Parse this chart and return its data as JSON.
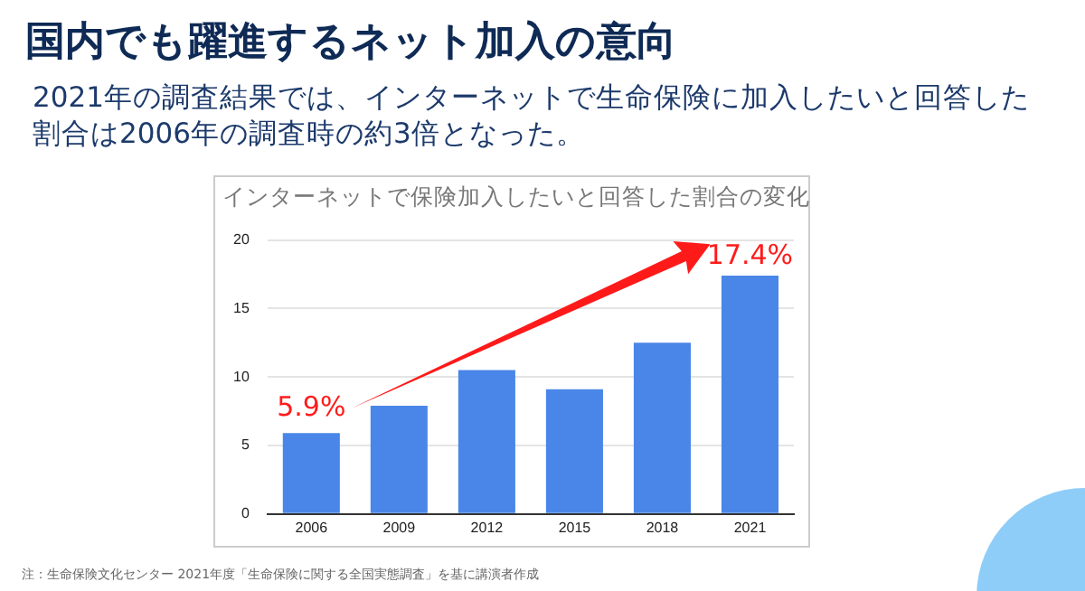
{
  "chart_data": {
    "type": "bar",
    "title": "インターネットで保険加入したいと回答した割合の変化",
    "subtitle": "2021年の調査結果では、インターネットで生命保険に加入したいと回答した割合は2006年の調査時の約3倍となった。",
    "annotations": [
      "国内でも躍進するネット加入の意向",
      "注：生命保険文化センター 2021年度「生命保険に関する全国実態調査」を基に講演者作成"
    ],
    "categories": [
      "2006",
      "2009",
      "2012",
      "2015",
      "2018",
      "2021"
    ],
    "values": [
      5.9,
      7.9,
      10.5,
      9.1,
      12.5,
      17.4
    ],
    "value_labels": [
      "5.9%",
      null,
      null,
      null,
      null,
      "17.4%"
    ],
    "color": "#4a86e8",
    "ylim": [
      0,
      20
    ],
    "yticks": [
      0,
      5,
      10,
      15,
      20
    ],
    "grid": "y",
    "legend": false
  }
}
